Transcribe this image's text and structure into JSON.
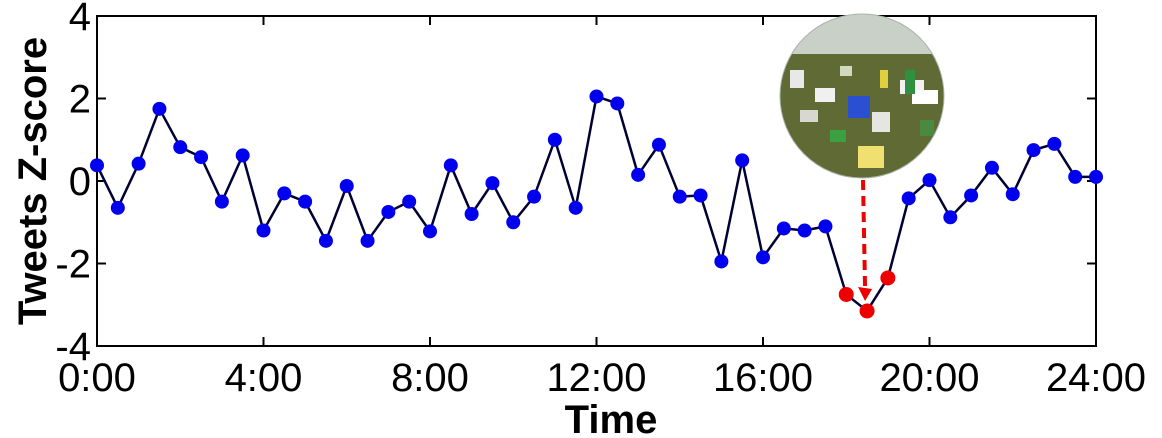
{
  "chart_data": {
    "type": "line",
    "xlabel": "Time",
    "ylabel": "Tweets Z-score",
    "xlim": [
      0,
      24
    ],
    "ylim": [
      -4,
      4
    ],
    "x_ticks": [
      {
        "value": 0,
        "label": "0:00"
      },
      {
        "value": 4,
        "label": "4:00"
      },
      {
        "value": 8,
        "label": "8:00"
      },
      {
        "value": 12,
        "label": "12:00"
      },
      {
        "value": 16,
        "label": "16:00"
      },
      {
        "value": 20,
        "label": "20:00"
      },
      {
        "value": 24,
        "label": "24:00"
      }
    ],
    "y_ticks": [
      {
        "value": 4,
        "label": "4"
      },
      {
        "value": 2,
        "label": "2"
      },
      {
        "value": 0,
        "label": "0"
      },
      {
        "value": -2,
        "label": "-2"
      },
      {
        "value": -4,
        "label": "-4"
      }
    ],
    "grid": false,
    "line_color": "#000033",
    "point_color": "#0000ee",
    "highlight_color": "#ee0000",
    "series": [
      {
        "x": [
          0,
          0.5,
          1,
          1.5,
          2,
          2.5,
          3,
          3.5,
          4,
          4.5,
          5,
          5.5,
          6,
          6.5,
          7,
          7.5,
          8,
          8.5,
          9,
          9.5,
          10,
          10.5,
          11,
          11.5,
          12,
          12.5,
          13,
          13.5,
          14,
          14.5,
          15,
          15.5,
          16,
          16.5,
          17,
          17.5,
          18,
          18.5,
          19,
          19.5,
          20,
          20.5,
          21,
          21.5,
          22,
          22.5,
          23,
          23.5,
          24
        ],
        "y": [
          0.38,
          -0.65,
          0.42,
          1.75,
          0.82,
          0.58,
          -0.5,
          0.62,
          -1.2,
          -0.3,
          -0.5,
          -1.45,
          -0.12,
          -1.45,
          -0.75,
          -0.5,
          -1.22,
          0.38,
          -0.8,
          -0.05,
          -1.0,
          -0.38,
          1.0,
          -0.65,
          2.05,
          1.88,
          0.15,
          0.88,
          -0.38,
          -0.35,
          -1.95,
          0.5,
          -1.85,
          -1.15,
          -1.2,
          -1.1,
          -2.75,
          -3.15,
          -2.35,
          -0.42,
          0.02,
          -0.88,
          -0.35,
          0.32,
          -0.32,
          0.75,
          0.9,
          0.1,
          0.1
        ]
      }
    ],
    "highlight_indices": [
      36,
      37,
      38
    ],
    "annotation": {
      "type": "dashed-arrow",
      "from": "inset-photo",
      "to_index": 37,
      "color": "#ee0000"
    },
    "inset_image": "crowd-protest-photo"
  }
}
